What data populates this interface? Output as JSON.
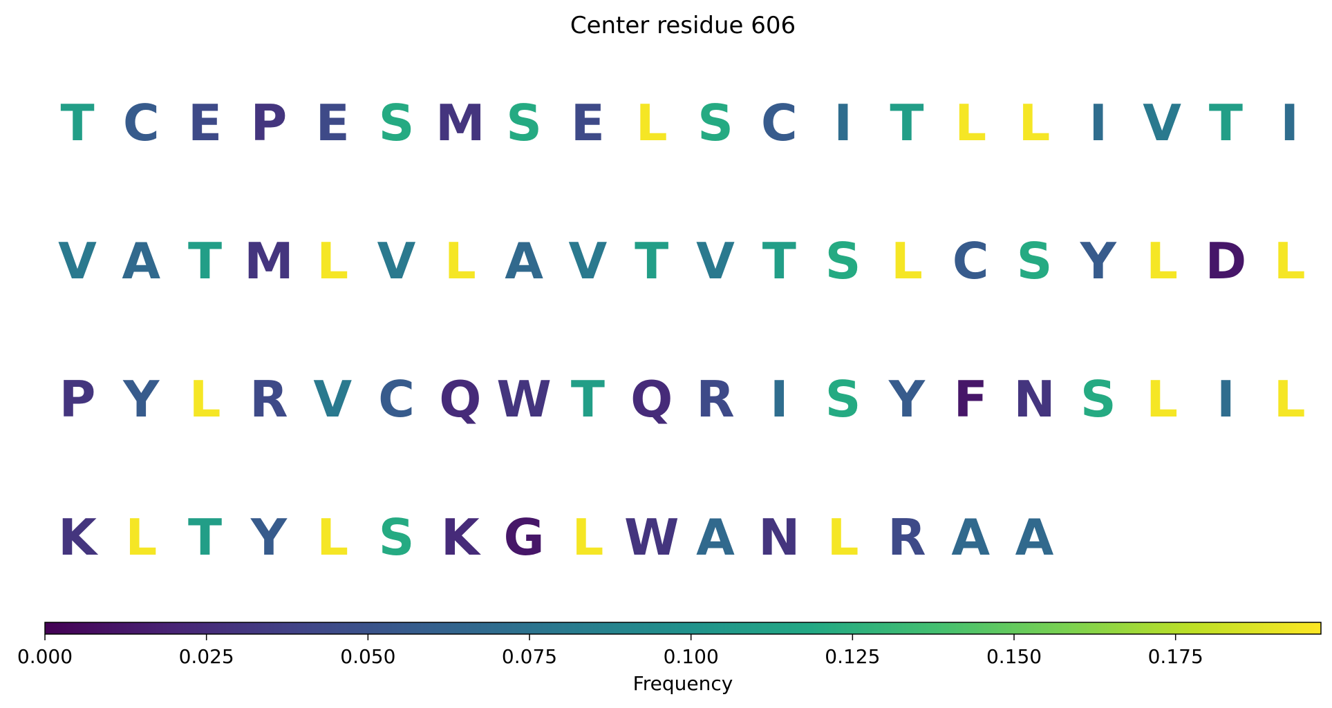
{
  "chart_data": {
    "type": "heatmap",
    "title": "Center residue 606",
    "rows": [
      {
        "residues": [
          "T",
          "C",
          "E",
          "P",
          "E",
          "S",
          "M",
          "S",
          "E",
          "L",
          "S",
          "C",
          "I",
          "T",
          "L",
          "L",
          "I",
          "V",
          "T",
          "I"
        ],
        "frequencies": [
          0.11,
          0.056,
          0.044,
          0.03,
          0.044,
          0.12,
          0.03,
          0.12,
          0.044,
          0.195,
          0.12,
          0.056,
          0.07,
          0.11,
          0.195,
          0.195,
          0.07,
          0.08,
          0.11,
          0.07
        ]
      },
      {
        "residues": [
          "V",
          "A",
          "T",
          "M",
          "L",
          "V",
          "L",
          "A",
          "V",
          "T",
          "V",
          "T",
          "S",
          "L",
          "C",
          "S",
          "Y",
          "L",
          "D",
          "L"
        ],
        "frequencies": [
          0.08,
          0.067,
          0.11,
          0.03,
          0.195,
          0.08,
          0.195,
          0.067,
          0.08,
          0.11,
          0.08,
          0.11,
          0.12,
          0.195,
          0.056,
          0.12,
          0.056,
          0.195,
          0.012,
          0.195
        ]
      },
      {
        "residues": [
          "P",
          "Y",
          "L",
          "R",
          "V",
          "C",
          "Q",
          "W",
          "T",
          "Q",
          "R",
          "I",
          "S",
          "Y",
          "F",
          "N",
          "S",
          "L",
          "I",
          "L"
        ],
        "frequencies": [
          0.03,
          0.056,
          0.195,
          0.044,
          0.08,
          0.056,
          0.024,
          0.03,
          0.11,
          0.024,
          0.044,
          0.07,
          0.12,
          0.056,
          0.012,
          0.03,
          0.12,
          0.195,
          0.07,
          0.195
        ]
      },
      {
        "residues": [
          "K",
          "L",
          "T",
          "Y",
          "L",
          "S",
          "K",
          "G",
          "L",
          "W",
          "A",
          "N",
          "L",
          "R",
          "A",
          "A"
        ],
        "frequencies": [
          0.03,
          0.195,
          0.11,
          0.056,
          0.195,
          0.12,
          0.024,
          0.012,
          0.195,
          0.03,
          0.067,
          0.03,
          0.195,
          0.044,
          0.067,
          0.067
        ]
      }
    ],
    "colormap": "viridis",
    "colorbar": {
      "label": "Frequency",
      "range": [
        0,
        0.1975
      ],
      "ticks": [
        0.0,
        0.025,
        0.05,
        0.075,
        0.1,
        0.125,
        0.15,
        0.175
      ],
      "tick_labels": [
        "0.000",
        "0.025",
        "0.050",
        "0.075",
        "0.100",
        "0.125",
        "0.150",
        "0.175"
      ]
    },
    "grid": false
  }
}
